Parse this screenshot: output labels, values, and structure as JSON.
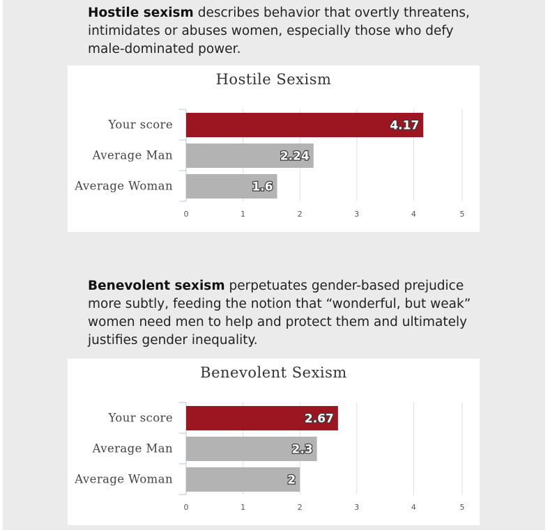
{
  "intro_hostile": {
    "term": "Hostile sexism",
    "text": " describes behavior that overtly threatens, intimidates or abuses women, especially those who defy male-dominated power."
  },
  "intro_benevolent": {
    "term": "Benevolent sexism",
    "text": " perpetuates gender-based prejudice more subtly, feeding the notion that “wonderful, but weak” women need men to help and protect them and ultimately justifies gender inequality."
  },
  "colors": {
    "your_score": "#9b1620",
    "average": "#b3b3b3",
    "panel_bg": "#ebebeb"
  },
  "chart_data": [
    {
      "type": "bar",
      "orientation": "horizontal",
      "title": "Hostile Sexism",
      "categories": [
        "Your score",
        "Average Man",
        "Average Woman"
      ],
      "values": [
        4.17,
        2.24,
        1.6
      ],
      "value_labels": [
        "4.17",
        "2.24",
        "1.6"
      ],
      "xlim": [
        0,
        5
      ],
      "ticks": [
        "0",
        "1",
        "2",
        "3",
        "4",
        "5"
      ],
      "grid": true,
      "legend": "none"
    },
    {
      "type": "bar",
      "orientation": "horizontal",
      "title": "Benevolent Sexism",
      "categories": [
        "Your score",
        "Average Man",
        "Average Woman"
      ],
      "values": [
        2.67,
        2.3,
        2
      ],
      "value_labels": [
        "2.67",
        "2.3",
        "2"
      ],
      "xlim": [
        0,
        5
      ],
      "ticks": [
        "0",
        "1",
        "2",
        "3",
        "4",
        "5"
      ],
      "grid": true,
      "legend": "none"
    }
  ]
}
